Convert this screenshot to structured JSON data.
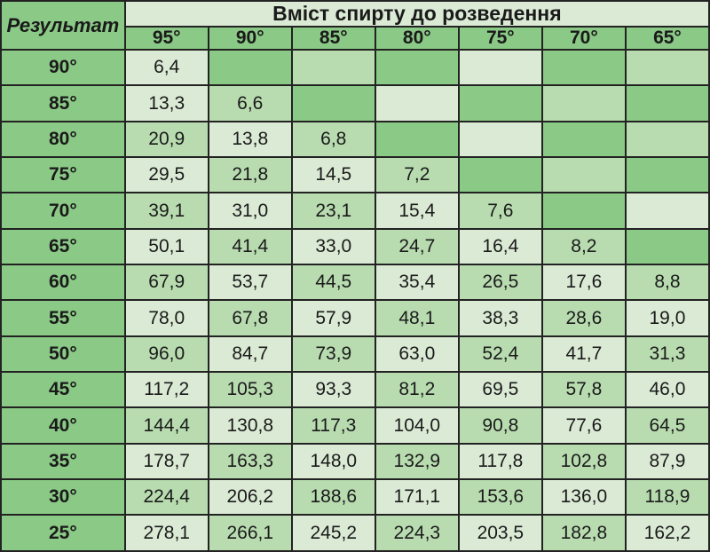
{
  "title_corner": "Результат",
  "title_top": "Вміст спирту до розведення",
  "col_headers": [
    "95°",
    "90°",
    "85°",
    "80°",
    "75°",
    "70°",
    "65°"
  ],
  "row_headers": [
    "90°",
    "85°",
    "80°",
    "75°",
    "70°",
    "65°",
    "60°",
    "55°",
    "50°",
    "45°",
    "40°",
    "35°",
    "30°",
    "25°"
  ],
  "rows": [
    {
      "v": [
        "6,4",
        "",
        "",
        "",
        "",
        "",
        ""
      ],
      "s": [
        "l",
        "d",
        "m",
        "d",
        "l",
        "d",
        "m"
      ]
    },
    {
      "v": [
        "13,3",
        "6,6",
        "",
        "",
        "",
        "",
        ""
      ],
      "s": [
        "l",
        "m",
        "d",
        "l",
        "d",
        "m",
        "d"
      ]
    },
    {
      "v": [
        "20,9",
        "13,8",
        "6,8",
        "",
        "",
        "",
        ""
      ],
      "s": [
        "m",
        "l",
        "m",
        "d",
        "l",
        "d",
        "m"
      ]
    },
    {
      "v": [
        "29,5",
        "21,8",
        "14,5",
        "7,2",
        "",
        "",
        ""
      ],
      "s": [
        "l",
        "m",
        "l",
        "m",
        "d",
        "m",
        "d"
      ]
    },
    {
      "v": [
        "39,1",
        "31,0",
        "23,1",
        "15,4",
        "7,6",
        "",
        ""
      ],
      "s": [
        "m",
        "l",
        "m",
        "l",
        "m",
        "d",
        "l"
      ]
    },
    {
      "v": [
        "50,1",
        "41,4",
        "33,0",
        "24,7",
        "16,4",
        "8,2",
        ""
      ],
      "s": [
        "l",
        "m",
        "l",
        "m",
        "l",
        "m",
        "d"
      ]
    },
    {
      "v": [
        "67,9",
        "53,7",
        "44,5",
        "35,4",
        "26,5",
        "17,6",
        "8,8"
      ],
      "s": [
        "m",
        "l",
        "m",
        "l",
        "m",
        "l",
        "m"
      ]
    },
    {
      "v": [
        "78,0",
        "67,8",
        "57,9",
        "48,1",
        "38,3",
        "28,6",
        "19,0"
      ],
      "s": [
        "l",
        "m",
        "l",
        "m",
        "l",
        "m",
        "l"
      ]
    },
    {
      "v": [
        "96,0",
        "84,7",
        "73,9",
        "63,0",
        "52,4",
        "41,7",
        "31,3"
      ],
      "s": [
        "m",
        "l",
        "m",
        "l",
        "m",
        "l",
        "m"
      ]
    },
    {
      "v": [
        "117,2",
        "105,3",
        "93,3",
        "81,2",
        "69,5",
        "57,8",
        "46,0"
      ],
      "s": [
        "l",
        "m",
        "l",
        "m",
        "l",
        "m",
        "l"
      ]
    },
    {
      "v": [
        "144,4",
        "130,8",
        "117,3",
        "104,0",
        "90,8",
        "77,6",
        "64,5"
      ],
      "s": [
        "m",
        "l",
        "m",
        "l",
        "m",
        "l",
        "m"
      ]
    },
    {
      "v": [
        "178,7",
        "163,3",
        "148,0",
        "132,9",
        "117,8",
        "102,8",
        "87,9"
      ],
      "s": [
        "l",
        "m",
        "l",
        "m",
        "l",
        "m",
        "l"
      ]
    },
    {
      "v": [
        "224,4",
        "206,2",
        "188,6",
        "171,1",
        "153,6",
        "136,0",
        "118,9"
      ],
      "s": [
        "m",
        "l",
        "m",
        "l",
        "m",
        "l",
        "m"
      ]
    },
    {
      "v": [
        "278,1",
        "266,1",
        "245,2",
        "224,3",
        "203,5",
        "182,8",
        "162,2"
      ],
      "s": [
        "l",
        "m",
        "l",
        "m",
        "l",
        "m",
        "l"
      ]
    }
  ],
  "shade_map": {
    "l": "c-light",
    "m": "c-med",
    "d": "c-dark"
  }
}
